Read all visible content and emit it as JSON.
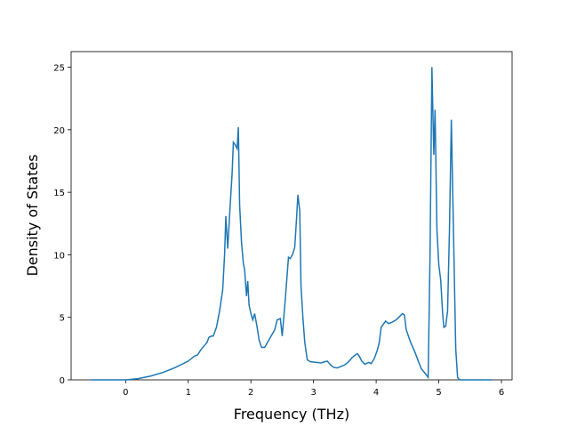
{
  "chart_data": {
    "type": "line",
    "x_label": "Frequency (THz)",
    "y_label": "Density of States",
    "xlim": [
      -0.87,
      6.17
    ],
    "ylim": [
      0,
      26.25
    ],
    "xticks": [
      0,
      1,
      2,
      3,
      4,
      5,
      6
    ],
    "yticks": [
      0,
      5,
      10,
      15,
      20,
      25
    ],
    "grid": false,
    "series": [
      {
        "color": "#1f77b4",
        "x": [
          -0.55,
          -0.3,
          0,
          0.2,
          0.4,
          0.6,
          0.8,
          1.0,
          1.1,
          1.15,
          1.2,
          1.25,
          1.3,
          1.33,
          1.37,
          1.4,
          1.45,
          1.5,
          1.55,
          1.58,
          1.6,
          1.63,
          1.67,
          1.7,
          1.72,
          1.75,
          1.78,
          1.8,
          1.82,
          1.85,
          1.88,
          1.9,
          1.93,
          1.95,
          1.97,
          2.0,
          2.03,
          2.06,
          2.1,
          2.13,
          2.17,
          2.22,
          2.3,
          2.38,
          2.42,
          2.47,
          2.5,
          2.55,
          2.6,
          2.63,
          2.67,
          2.7,
          2.73,
          2.75,
          2.78,
          2.8,
          2.83,
          2.86,
          2.9,
          2.95,
          3.05,
          3.12,
          3.18,
          3.22,
          3.27,
          3.32,
          3.38,
          3.45,
          3.5,
          3.55,
          3.62,
          3.67,
          3.7,
          3.73,
          3.77,
          3.82,
          3.88,
          3.92,
          3.97,
          4.02,
          4.05,
          4.08,
          4.15,
          4.2,
          4.25,
          4.32,
          4.38,
          4.42,
          4.45,
          4.48,
          4.55,
          4.62,
          4.68,
          4.72,
          4.8,
          4.83,
          4.86,
          4.89,
          4.92,
          4.94,
          4.97,
          5.0,
          5.03,
          5.06,
          5.08,
          5.11,
          5.14,
          5.17,
          5.2,
          5.23,
          5.27,
          5.3,
          5.33,
          5.5,
          5.85
        ],
        "values": [
          0,
          0,
          0,
          0.1,
          0.3,
          0.6,
          1.0,
          1.5,
          1.9,
          2.0,
          2.4,
          2.7,
          3.0,
          3.4,
          3.5,
          3.5,
          4.2,
          5.5,
          7.2,
          10,
          13.1,
          10.5,
          14,
          16.5,
          19,
          18.8,
          18.5,
          20.2,
          14,
          11,
          9.3,
          8.8,
          6.7,
          7.9,
          6,
          5.3,
          4.8,
          5.3,
          4.2,
          3.2,
          2.6,
          2.6,
          3.3,
          4.0,
          4.8,
          4.9,
          3.5,
          6.5,
          9.8,
          9.7,
          10.1,
          10.6,
          13,
          14.8,
          13.5,
          7.5,
          5,
          3,
          1.6,
          1.45,
          1.4,
          1.35,
          1.45,
          1.5,
          1.2,
          1.0,
          0.95,
          1.1,
          1.2,
          1.4,
          1.8,
          2.0,
          2.1,
          1.9,
          1.5,
          1.25,
          1.4,
          1.3,
          1.7,
          2.4,
          3,
          4.2,
          4.7,
          4.5,
          4.6,
          4.8,
          5.1,
          5.3,
          5.2,
          4.0,
          3.0,
          2.2,
          1.4,
          0.9,
          0.4,
          0.2,
          10,
          25,
          18,
          21.6,
          12,
          9.2,
          8,
          5.4,
          4.2,
          4.3,
          5.5,
          12,
          20.8,
          13,
          2.5,
          0.2,
          0,
          0,
          0
        ]
      }
    ]
  }
}
